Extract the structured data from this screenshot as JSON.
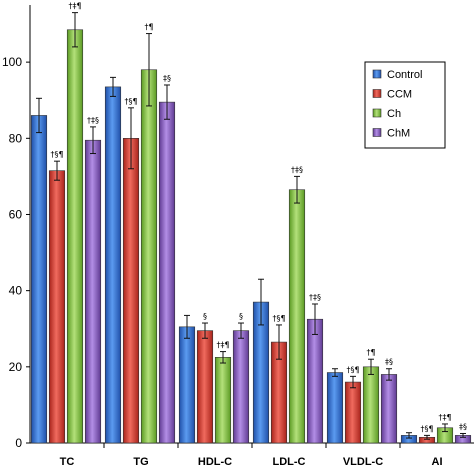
{
  "chart_data": {
    "type": "bar",
    "categories": [
      "TC",
      "TG",
      "HDL-C",
      "LDL-C",
      "VLDL-C",
      "AI"
    ],
    "series": [
      {
        "name": "Control",
        "color": "#2e6fd6",
        "values": [
          86,
          93.5,
          30.5,
          37,
          18.5,
          2
        ],
        "errors": [
          4.5,
          2.5,
          3,
          6,
          1,
          0.7
        ],
        "sig": [
          "",
          "",
          "",
          "",
          "",
          ""
        ]
      },
      {
        "name": "CCM",
        "color": "#d63a2e",
        "values": [
          71.5,
          80,
          29.5,
          26.5,
          16,
          1.5
        ],
        "errors": [
          2.5,
          8,
          2,
          4.5,
          1.5,
          0.5
        ],
        "sig": [
          "†§¶",
          "†§¶",
          "§",
          "†§¶",
          "†§¶",
          "†§¶"
        ]
      },
      {
        "name": "Ch",
        "color": "#7fc141",
        "values": [
          108.5,
          98,
          22.5,
          66.5,
          20,
          4
        ],
        "errors": [
          4.5,
          9.5,
          1.5,
          3.5,
          2,
          1
        ],
        "sig": [
          "†‡¶",
          "†¶",
          "†‡¶",
          "†‡§",
          "†¶",
          "†‡¶"
        ]
      },
      {
        "name": "ChM",
        "color": "#8a5ac2",
        "values": [
          79.5,
          89.5,
          29.5,
          32.5,
          18,
          2
        ],
        "errors": [
          3.5,
          4.5,
          2,
          4,
          1.5,
          0.5
        ],
        "sig": [
          "†‡§",
          "‡§",
          "§",
          "†‡§",
          "‡§",
          "‡§"
        ]
      }
    ],
    "yticks": [
      0,
      20,
      40,
      60,
      80,
      100
    ],
    "ylim": [
      0,
      115
    ],
    "grid": false,
    "legend": "top-right"
  }
}
